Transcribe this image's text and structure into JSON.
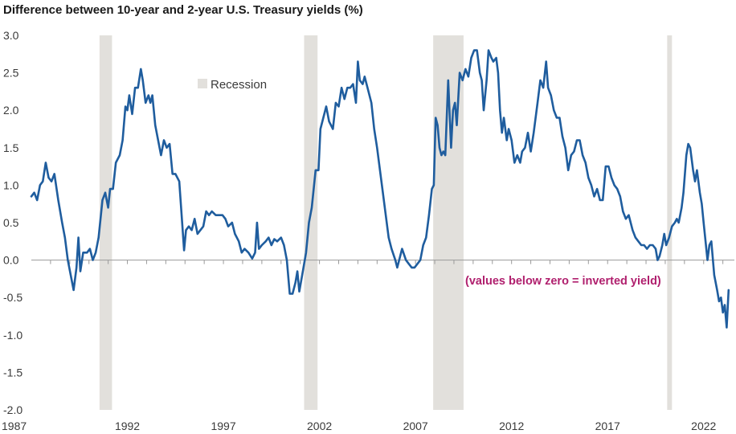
{
  "chart_data": {
    "type": "line",
    "title": "Difference between 10-year and 2-year U.S. Treasury yields (%)",
    "xlabel": "",
    "ylabel": "",
    "xlim": [
      1987.0,
      2023.6
    ],
    "ylim": [
      -2.0,
      3.0
    ],
    "y_ticks": [
      3.0,
      2.5,
      2.0,
      1.5,
      1.0,
      0.5,
      0.0,
      -0.5,
      -1.0,
      -1.5,
      -2.0
    ],
    "y_tick_labels": [
      "3.0",
      "2.5",
      "2.0",
      "1.5",
      "1.0",
      "0.5",
      "0.0",
      "-0.5",
      "-1.0",
      "-1.5",
      "-2.0"
    ],
    "x_ticks": [
      1987,
      1992,
      1997,
      2002,
      2007,
      2012,
      2017,
      2022
    ],
    "x_tick_labels": [
      "1987",
      "1992",
      "1997",
      "2002",
      "2007",
      "2012",
      "2017",
      "2022"
    ],
    "grid": false,
    "legend": {
      "label": "Recession",
      "placement": "top-left"
    },
    "annotation": "(values below zero = inverted yield)",
    "colors": {
      "line": "#1f5d9e",
      "recession": "#e2e0dc",
      "annotation": "#b0206e",
      "axis": "#9a9a9a"
    },
    "recessions": [
      [
        1990.55,
        1991.2
      ],
      [
        2001.2,
        2001.9
      ],
      [
        2007.92,
        2009.5
      ],
      [
        2020.1,
        2020.35
      ]
    ],
    "series": [
      {
        "name": "",
        "points": [
          [
            1987.0,
            0.85
          ],
          [
            1987.15,
            0.9
          ],
          [
            1987.3,
            0.8
          ],
          [
            1987.45,
            1.0
          ],
          [
            1987.6,
            1.05
          ],
          [
            1987.75,
            1.3
          ],
          [
            1987.9,
            1.1
          ],
          [
            1988.05,
            1.05
          ],
          [
            1988.2,
            1.15
          ],
          [
            1988.4,
            0.8
          ],
          [
            1988.6,
            0.5
          ],
          [
            1988.75,
            0.3
          ],
          [
            1988.9,
            0.0
          ],
          [
            1989.05,
            -0.2
          ],
          [
            1989.2,
            -0.4
          ],
          [
            1989.35,
            -0.1
          ],
          [
            1989.45,
            0.3
          ],
          [
            1989.55,
            -0.15
          ],
          [
            1989.7,
            0.1
          ],
          [
            1989.9,
            0.1
          ],
          [
            1990.05,
            0.15
          ],
          [
            1990.2,
            0.0
          ],
          [
            1990.35,
            0.1
          ],
          [
            1990.5,
            0.3
          ],
          [
            1990.7,
            0.8
          ],
          [
            1990.85,
            0.9
          ],
          [
            1991.0,
            0.7
          ],
          [
            1991.1,
            0.95
          ],
          [
            1991.25,
            0.95
          ],
          [
            1991.4,
            1.3
          ],
          [
            1991.6,
            1.4
          ],
          [
            1991.75,
            1.6
          ],
          [
            1991.9,
            2.05
          ],
          [
            1992.0,
            2.0
          ],
          [
            1992.1,
            2.2
          ],
          [
            1992.25,
            1.95
          ],
          [
            1992.4,
            2.3
          ],
          [
            1992.55,
            2.3
          ],
          [
            1992.7,
            2.55
          ],
          [
            1992.8,
            2.4
          ],
          [
            1992.95,
            2.1
          ],
          [
            1993.1,
            2.2
          ],
          [
            1993.2,
            2.1
          ],
          [
            1993.3,
            2.2
          ],
          [
            1993.45,
            1.8
          ],
          [
            1993.6,
            1.6
          ],
          [
            1993.75,
            1.4
          ],
          [
            1993.9,
            1.6
          ],
          [
            1994.05,
            1.5
          ],
          [
            1994.2,
            1.55
          ],
          [
            1994.35,
            1.15
          ],
          [
            1994.5,
            1.15
          ],
          [
            1994.7,
            1.05
          ],
          [
            1994.85,
            0.5
          ],
          [
            1994.95,
            0.13
          ],
          [
            1995.05,
            0.4
          ],
          [
            1995.2,
            0.45
          ],
          [
            1995.35,
            0.4
          ],
          [
            1995.5,
            0.55
          ],
          [
            1995.65,
            0.35
          ],
          [
            1995.8,
            0.4
          ],
          [
            1995.95,
            0.45
          ],
          [
            1996.1,
            0.65
          ],
          [
            1996.25,
            0.6
          ],
          [
            1996.4,
            0.65
          ],
          [
            1996.6,
            0.6
          ],
          [
            1996.8,
            0.6
          ],
          [
            1996.95,
            0.6
          ],
          [
            1997.1,
            0.55
          ],
          [
            1997.25,
            0.45
          ],
          [
            1997.45,
            0.5
          ],
          [
            1997.6,
            0.35
          ],
          [
            1997.8,
            0.25
          ],
          [
            1997.95,
            0.1
          ],
          [
            1998.1,
            0.15
          ],
          [
            1998.3,
            0.1
          ],
          [
            1998.5,
            0.02
          ],
          [
            1998.65,
            0.1
          ],
          [
            1998.75,
            0.5
          ],
          [
            1998.85,
            0.15
          ],
          [
            1999.0,
            0.2
          ],
          [
            1999.2,
            0.25
          ],
          [
            1999.35,
            0.3
          ],
          [
            1999.5,
            0.2
          ],
          [
            1999.65,
            0.28
          ],
          [
            1999.8,
            0.25
          ],
          [
            2000.0,
            0.3
          ],
          [
            2000.15,
            0.2
          ],
          [
            2000.3,
            0.0
          ],
          [
            2000.45,
            -0.45
          ],
          [
            2000.6,
            -0.45
          ],
          [
            2000.75,
            -0.3
          ],
          [
            2000.85,
            -0.15
          ],
          [
            2000.95,
            -0.42
          ],
          [
            2001.1,
            -0.2
          ],
          [
            2001.3,
            0.1
          ],
          [
            2001.45,
            0.5
          ],
          [
            2001.6,
            0.7
          ],
          [
            2001.8,
            1.2
          ],
          [
            2001.95,
            1.2
          ],
          [
            2002.05,
            1.75
          ],
          [
            2002.2,
            1.9
          ],
          [
            2002.35,
            2.05
          ],
          [
            2002.5,
            1.85
          ],
          [
            2002.7,
            1.75
          ],
          [
            2002.85,
            2.1
          ],
          [
            2003.0,
            2.05
          ],
          [
            2003.15,
            2.3
          ],
          [
            2003.3,
            2.15
          ],
          [
            2003.45,
            2.3
          ],
          [
            2003.6,
            2.3
          ],
          [
            2003.75,
            2.35
          ],
          [
            2003.9,
            2.1
          ],
          [
            2004.0,
            2.65
          ],
          [
            2004.1,
            2.4
          ],
          [
            2004.25,
            2.35
          ],
          [
            2004.35,
            2.45
          ],
          [
            2004.5,
            2.3
          ],
          [
            2004.7,
            2.1
          ],
          [
            2004.85,
            1.75
          ],
          [
            2005.0,
            1.5
          ],
          [
            2005.15,
            1.2
          ],
          [
            2005.3,
            0.9
          ],
          [
            2005.45,
            0.6
          ],
          [
            2005.6,
            0.3
          ],
          [
            2005.75,
            0.15
          ],
          [
            2005.95,
            0.0
          ],
          [
            2006.05,
            -0.1
          ],
          [
            2006.2,
            0.05
          ],
          [
            2006.3,
            0.15
          ],
          [
            2006.5,
            0.0
          ],
          [
            2006.65,
            -0.05
          ],
          [
            2006.8,
            -0.1
          ],
          [
            2006.95,
            -0.1
          ],
          [
            2007.1,
            -0.05
          ],
          [
            2007.25,
            0.0
          ],
          [
            2007.4,
            0.2
          ],
          [
            2007.55,
            0.3
          ],
          [
            2007.7,
            0.6
          ],
          [
            2007.85,
            0.95
          ],
          [
            2007.95,
            1.0
          ],
          [
            2008.05,
            1.9
          ],
          [
            2008.15,
            1.8
          ],
          [
            2008.25,
            1.5
          ],
          [
            2008.35,
            1.4
          ],
          [
            2008.45,
            1.45
          ],
          [
            2008.55,
            1.4
          ],
          [
            2008.7,
            2.4
          ],
          [
            2008.8,
            1.8
          ],
          [
            2008.85,
            1.5
          ],
          [
            2008.95,
            2.0
          ],
          [
            2009.05,
            2.1
          ],
          [
            2009.15,
            1.8
          ],
          [
            2009.3,
            2.5
          ],
          [
            2009.45,
            2.4
          ],
          [
            2009.6,
            2.55
          ],
          [
            2009.75,
            2.45
          ],
          [
            2009.9,
            2.7
          ],
          [
            2010.05,
            2.8
          ],
          [
            2010.2,
            2.8
          ],
          [
            2010.35,
            2.5
          ],
          [
            2010.45,
            2.4
          ],
          [
            2010.55,
            2.0
          ],
          [
            2010.7,
            2.4
          ],
          [
            2010.8,
            2.8
          ],
          [
            2010.95,
            2.7
          ],
          [
            2011.05,
            2.65
          ],
          [
            2011.2,
            2.7
          ],
          [
            2011.3,
            2.5
          ],
          [
            2011.4,
            2.0
          ],
          [
            2011.5,
            1.7
          ],
          [
            2011.6,
            1.9
          ],
          [
            2011.75,
            1.6
          ],
          [
            2011.85,
            1.75
          ],
          [
            2012.0,
            1.6
          ],
          [
            2012.15,
            1.3
          ],
          [
            2012.3,
            1.4
          ],
          [
            2012.45,
            1.3
          ],
          [
            2012.55,
            1.45
          ],
          [
            2012.7,
            1.5
          ],
          [
            2012.85,
            1.7
          ],
          [
            2013.0,
            1.45
          ],
          [
            2013.15,
            1.7
          ],
          [
            2013.35,
            2.1
          ],
          [
            2013.5,
            2.4
          ],
          [
            2013.65,
            2.3
          ],
          [
            2013.8,
            2.65
          ],
          [
            2013.9,
            2.3
          ],
          [
            2014.05,
            2.2
          ],
          [
            2014.2,
            2.0
          ],
          [
            2014.35,
            1.9
          ],
          [
            2014.5,
            1.9
          ],
          [
            2014.65,
            1.65
          ],
          [
            2014.8,
            1.5
          ],
          [
            2014.95,
            1.2
          ],
          [
            2015.1,
            1.4
          ],
          [
            2015.25,
            1.45
          ],
          [
            2015.4,
            1.6
          ],
          [
            2015.55,
            1.6
          ],
          [
            2015.7,
            1.4
          ],
          [
            2015.85,
            1.3
          ],
          [
            2016.0,
            1.1
          ],
          [
            2016.15,
            1.0
          ],
          [
            2016.3,
            0.85
          ],
          [
            2016.45,
            0.95
          ],
          [
            2016.6,
            0.8
          ],
          [
            2016.75,
            0.8
          ],
          [
            2016.9,
            1.25
          ],
          [
            2017.05,
            1.25
          ],
          [
            2017.2,
            1.1
          ],
          [
            2017.35,
            1.0
          ],
          [
            2017.5,
            0.95
          ],
          [
            2017.65,
            0.85
          ],
          [
            2017.8,
            0.65
          ],
          [
            2017.95,
            0.55
          ],
          [
            2018.1,
            0.6
          ],
          [
            2018.3,
            0.4
          ],
          [
            2018.45,
            0.3
          ],
          [
            2018.6,
            0.25
          ],
          [
            2018.75,
            0.2
          ],
          [
            2018.9,
            0.2
          ],
          [
            2019.05,
            0.15
          ],
          [
            2019.2,
            0.2
          ],
          [
            2019.35,
            0.2
          ],
          [
            2019.5,
            0.15
          ],
          [
            2019.6,
            0.0
          ],
          [
            2019.7,
            0.05
          ],
          [
            2019.85,
            0.2
          ],
          [
            2019.95,
            0.35
          ],
          [
            2020.05,
            0.2
          ],
          [
            2020.2,
            0.3
          ],
          [
            2020.35,
            0.45
          ],
          [
            2020.5,
            0.5
          ],
          [
            2020.6,
            0.55
          ],
          [
            2020.7,
            0.5
          ],
          [
            2020.85,
            0.7
          ],
          [
            2020.95,
            0.9
          ],
          [
            2021.1,
            1.4
          ],
          [
            2021.2,
            1.55
          ],
          [
            2021.3,
            1.5
          ],
          [
            2021.45,
            1.2
          ],
          [
            2021.55,
            1.05
          ],
          [
            2021.65,
            1.2
          ],
          [
            2021.8,
            0.9
          ],
          [
            2021.9,
            0.75
          ],
          [
            2022.0,
            0.5
          ],
          [
            2022.1,
            0.25
          ],
          [
            2022.2,
            0.0
          ],
          [
            2022.3,
            0.2
          ],
          [
            2022.4,
            0.25
          ],
          [
            2022.55,
            -0.2
          ],
          [
            2022.7,
            -0.4
          ],
          [
            2022.8,
            -0.55
          ],
          [
            2022.9,
            -0.5
          ],
          [
            2023.0,
            -0.7
          ],
          [
            2023.1,
            -0.6
          ],
          [
            2023.2,
            -0.9
          ],
          [
            2023.3,
            -0.4
          ]
        ]
      }
    ]
  }
}
